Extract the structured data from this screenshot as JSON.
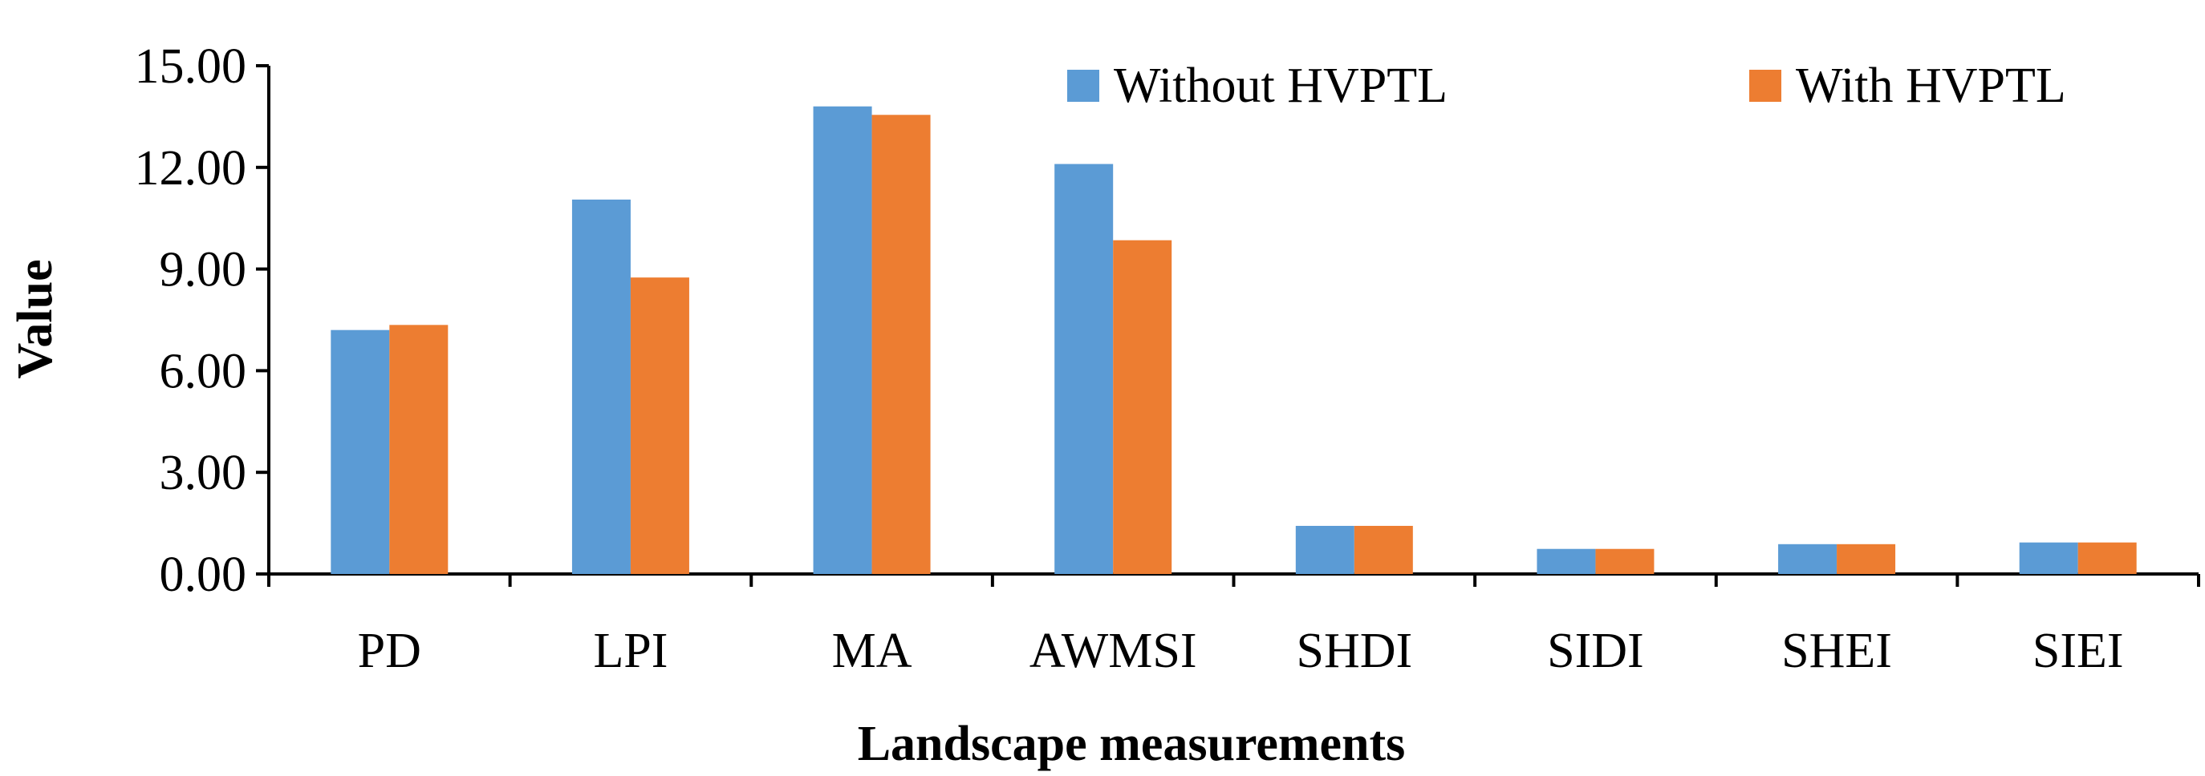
{
  "chart_data": {
    "type": "bar",
    "title": "",
    "xlabel": "Landscape measurements",
    "ylabel": "Value",
    "ylim": [
      0,
      15
    ],
    "yticks": [
      "0.00",
      "3.00",
      "6.00",
      "9.00",
      "12.00",
      "15.00"
    ],
    "categories": [
      "PD",
      "LPI",
      "MA",
      "AWMSI",
      "SHDI",
      "SIDI",
      "SHEI",
      "SIEI"
    ],
    "series": [
      {
        "name": "Without HVPTL",
        "color": "#5b9bd5",
        "values": [
          7.2,
          11.05,
          13.8,
          12.1,
          1.42,
          0.74,
          0.88,
          0.93
        ]
      },
      {
        "name": "With HVPTL",
        "color": "#ed7d31",
        "values": [
          7.35,
          8.75,
          13.55,
          9.85,
          1.42,
          0.74,
          0.88,
          0.93
        ]
      }
    ],
    "legend_position": "top-right",
    "grid": false
  }
}
